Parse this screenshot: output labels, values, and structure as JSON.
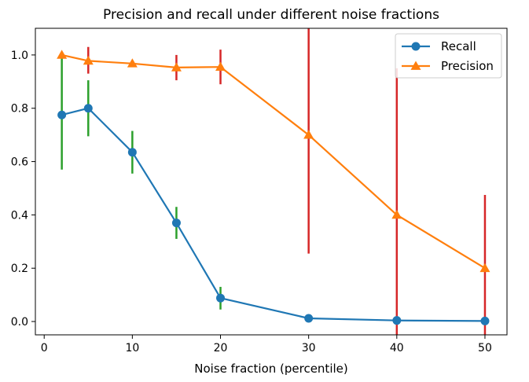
{
  "chart_data": {
    "type": "line",
    "title": "Precision and recall under different noise fractions",
    "xlabel": "Noise fraction (percentile)",
    "ylabel": "",
    "xlim": [
      -1,
      52.5
    ],
    "ylim": [
      -0.05,
      1.1
    ],
    "xticks": [
      0,
      10,
      20,
      30,
      40,
      50
    ],
    "xtick_labels": [
      "0",
      "10",
      "20",
      "30",
      "40",
      "50"
    ],
    "yticks": [
      0.0,
      0.2,
      0.4,
      0.6,
      0.8,
      1.0
    ],
    "ytick_labels": [
      "0.0",
      "0.2",
      "0.4",
      "0.6",
      "0.8",
      "1.0"
    ],
    "legend_position": "top-right",
    "series": [
      {
        "name": "Recall",
        "marker": "circle",
        "color": "#1f77b4",
        "errorbar_color": "#2ca02c",
        "x": [
          2,
          5,
          10,
          15,
          20,
          30,
          40,
          50
        ],
        "y": [
          0.775,
          0.8,
          0.635,
          0.37,
          0.088,
          0.012,
          0.004,
          0.002
        ],
        "error_low": [
          0.57,
          0.695,
          0.555,
          0.31,
          0.045,
          null,
          null,
          null
        ],
        "error_high": [
          1.0,
          0.905,
          0.715,
          0.43,
          0.13,
          null,
          null,
          null
        ]
      },
      {
        "name": "Precision",
        "marker": "triangle",
        "color": "#ff7f0e",
        "errorbar_color": "#d62728",
        "x": [
          2,
          5,
          10,
          15,
          20,
          30,
          40,
          50
        ],
        "y": [
          1.0,
          0.978,
          0.968,
          0.953,
          0.955,
          0.7,
          0.4,
          0.2
        ],
        "error_low": [
          null,
          0.93,
          null,
          0.905,
          0.89,
          0.255,
          -0.05,
          -0.05
        ],
        "error_high": [
          null,
          1.03,
          null,
          1.0,
          1.02,
          1.1,
          0.95,
          0.475
        ]
      }
    ]
  }
}
